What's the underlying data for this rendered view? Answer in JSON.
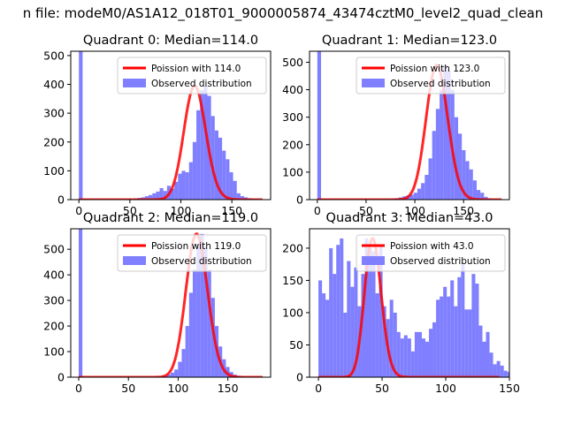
{
  "figure_title": "n file: modeM0/AS1A12_018T01_9000005874_43474cztM0_level2_quad_clean",
  "chart_data": [
    {
      "type": "bar",
      "title": "Quadrant 0: Median=114.0",
      "xlim": [
        -8,
        188
      ],
      "ylim": [
        0,
        515
      ],
      "xticks": [
        0,
        50,
        100,
        150
      ],
      "yticks": [
        0,
        100,
        200,
        300,
        400,
        500
      ],
      "legend_placement": "top-right",
      "colors": {
        "hist": "#7f7fff",
        "line": "#ff0000"
      },
      "series": [
        {
          "name": "Poission with 114.0",
          "kind": "line",
          "mean": 114.0
        },
        {
          "name": "Observed distribution",
          "kind": "histogram",
          "bin_start": 0,
          "bin_width": 3.6,
          "values": [
            515,
            0,
            0,
            0,
            0,
            0,
            0,
            0,
            0,
            0,
            0,
            0,
            0,
            0,
            0,
            4,
            6,
            8,
            12,
            16,
            22,
            28,
            40,
            30,
            48,
            38,
            62,
            90,
            100,
            95,
            130,
            200,
            310,
            380,
            395,
            360,
            290,
            240,
            215,
            170,
            140,
            95,
            65,
            22,
            12,
            8,
            5,
            2,
            1,
            0
          ]
        }
      ]
    },
    {
      "type": "bar",
      "title": "Quadrant 1: Median=123.0",
      "xlim": [
        -8,
        197
      ],
      "ylim": [
        0,
        540
      ],
      "xticks": [
        0,
        50,
        100,
        150
      ],
      "yticks": [
        0,
        100,
        200,
        300,
        400,
        500
      ],
      "legend_placement": "top-right",
      "colors": {
        "hist": "#7f7fff",
        "line": "#ff0000"
      },
      "series": [
        {
          "name": "Poission with 123.0",
          "kind": "line",
          "mean": 123.0
        },
        {
          "name": "Observed distribution",
          "kind": "histogram",
          "bin_start": 0,
          "bin_width": 3.8,
          "values": [
            540,
            0,
            0,
            0,
            0,
            0,
            0,
            0,
            0,
            0,
            0,
            0,
            0,
            0,
            0,
            0,
            0,
            0,
            0,
            0,
            3,
            5,
            8,
            12,
            15,
            18,
            25,
            40,
            60,
            90,
            150,
            250,
            330,
            400,
            490,
            470,
            400,
            300,
            240,
            180,
            140,
            110,
            70,
            35,
            25,
            10,
            5,
            2,
            1,
            0
          ]
        }
      ]
    },
    {
      "type": "bar",
      "title": "Quadrant 2: Median=119.0",
      "xlim": [
        -8,
        193
      ],
      "ylim": [
        0,
        580
      ],
      "xticks": [
        0,
        50,
        100,
        150
      ],
      "yticks": [
        0,
        100,
        200,
        300,
        400,
        500
      ],
      "legend_placement": "top-right",
      "colors": {
        "hist": "#7f7fff",
        "line": "#ff0000"
      },
      "series": [
        {
          "name": "Poission with 119.0",
          "kind": "line",
          "mean": 119.0
        },
        {
          "name": "Observed distribution",
          "kind": "histogram",
          "bin_start": 0,
          "bin_width": 3.7,
          "values": [
            580,
            0,
            0,
            0,
            0,
            0,
            0,
            0,
            0,
            0,
            0,
            0,
            0,
            0,
            0,
            0,
            0,
            0,
            0,
            0,
            0,
            0,
            2,
            5,
            10,
            18,
            30,
            60,
            110,
            200,
            330,
            420,
            520,
            560,
            510,
            420,
            310,
            200,
            120,
            70,
            40,
            20,
            10,
            5,
            2,
            1,
            0,
            0,
            0,
            0
          ]
        }
      ]
    },
    {
      "type": "bar",
      "title": "Quadrant 3: Median=43.0",
      "xlim": [
        -7,
        150
      ],
      "ylim": [
        0,
        230
      ],
      "xticks": [
        0,
        50,
        100,
        150
      ],
      "yticks": [
        0,
        50,
        100,
        150,
        200
      ],
      "legend_placement": "top-right",
      "colors": {
        "hist": "#7f7fff",
        "line": "#ff0000"
      },
      "series": [
        {
          "name": "Poission with 43.0",
          "kind": "line",
          "mean": 43.0
        },
        {
          "name": "Observed distribution",
          "kind": "histogram",
          "bin_start": 0,
          "bin_width": 2.8,
          "values": [
            150,
            130,
            120,
            200,
            160,
            205,
            215,
            100,
            180,
            140,
            170,
            110,
            160,
            215,
            200,
            195,
            130,
            205,
            110,
            90,
            120,
            100,
            70,
            60,
            65,
            60,
            40,
            70,
            70,
            60,
            55,
            75,
            85,
            120,
            125,
            140,
            125,
            150,
            110,
            155,
            175,
            105,
            105,
            160,
            145,
            80,
            55,
            70,
            38,
            20,
            25,
            18,
            10,
            8,
            5,
            3,
            2,
            1,
            0,
            0
          ]
        }
      ]
    }
  ]
}
